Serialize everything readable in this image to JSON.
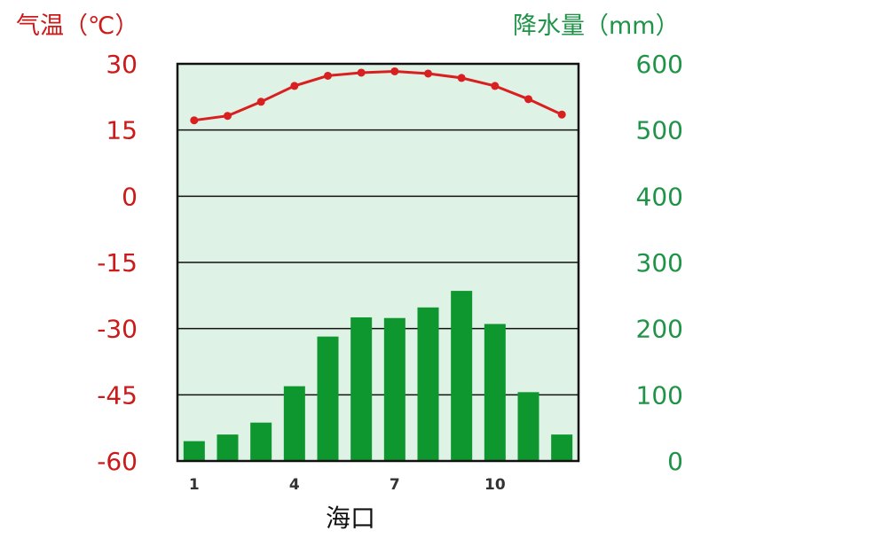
{
  "chart_data": {
    "type": "bar",
    "location": "海口",
    "categories": [
      "1",
      "2",
      "3",
      "4",
      "5",
      "6",
      "7",
      "8",
      "9",
      "10",
      "11",
      "12"
    ],
    "x_tick_labels": [
      "1",
      "4",
      "7",
      "10"
    ],
    "left_axis": {
      "label": "气温（℃）",
      "ticks": [
        30,
        15,
        0,
        -15,
        -30,
        -45,
        -60
      ],
      "ylim": [
        -60,
        30
      ],
      "color": "#cc1a1a"
    },
    "right_axis": {
      "label": "降水量（mm）",
      "ticks": [
        600,
        500,
        400,
        300,
        200,
        100,
        0
      ],
      "ylim": [
        0,
        600
      ],
      "color": "#1f9448"
    },
    "series": [
      {
        "kind": "bar",
        "axis": "right",
        "values": [
          30,
          40,
          58,
          113,
          188,
          217,
          216,
          232,
          257,
          207,
          104,
          40
        ],
        "color": "#0e962f"
      },
      {
        "kind": "line",
        "axis": "left",
        "values": [
          17.2,
          18.2,
          21.4,
          25.0,
          27.3,
          28.0,
          28.3,
          27.8,
          26.8,
          25.0,
          22.0,
          18.5
        ],
        "color": "#d91f1f"
      }
    ],
    "plot_background": "#dff2e6",
    "grid": true
  }
}
